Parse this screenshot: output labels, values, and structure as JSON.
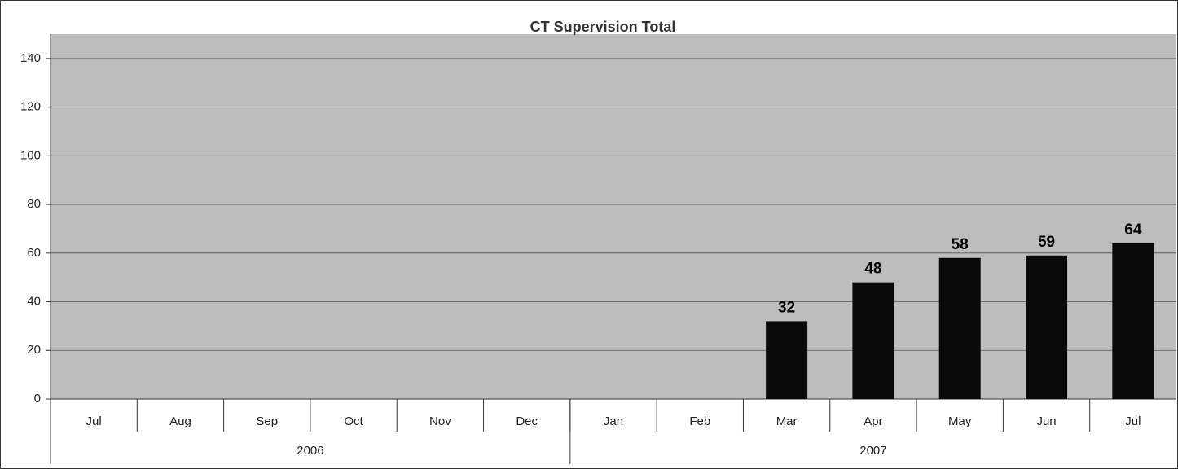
{
  "chart_data": {
    "type": "bar",
    "title": "CT Supervision Total",
    "categories": [
      "Jul",
      "Aug",
      "Sep",
      "Oct",
      "Nov",
      "Dec",
      "Jan",
      "Feb",
      "Mar",
      "Apr",
      "May",
      "Jun",
      "Jul"
    ],
    "groups": [
      {
        "label": "2006",
        "count": 6
      },
      {
        "label": "2007",
        "count": 7
      }
    ],
    "values": [
      null,
      null,
      null,
      null,
      null,
      null,
      null,
      null,
      32,
      48,
      58,
      59,
      64
    ],
    "color": "#0a0a0a",
    "ylim": [
      0,
      150
    ],
    "yticks": [
      0,
      20,
      40,
      60,
      80,
      100,
      120,
      140
    ],
    "grid": true
  }
}
